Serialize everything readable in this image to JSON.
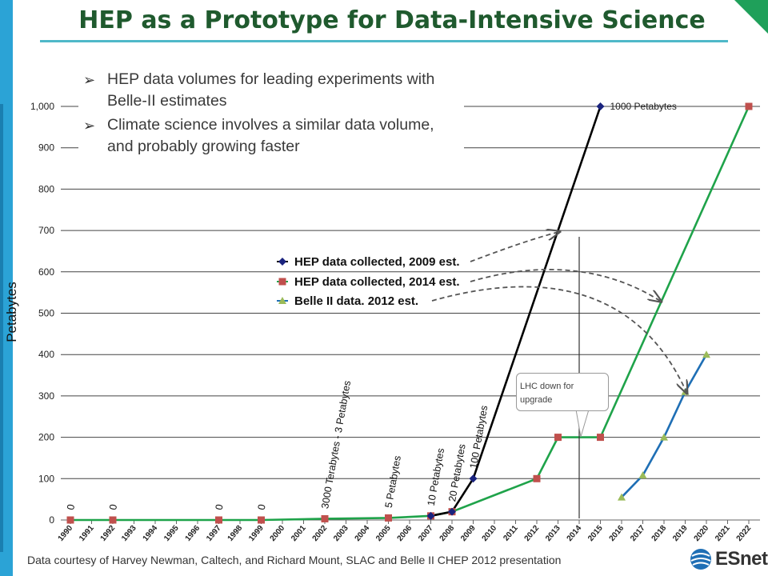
{
  "slide": {
    "title": "HEP as a Prototype for Data-Intensive Science",
    "bullets": [
      "HEP data volumes for leading experiments with Belle-II estimates",
      "Climate science involves a similar data volume, and probably growing faster"
    ],
    "footer": "Data courtesy of Harvey Newman, Caltech, and Richard Mount, SLAC and Belle II CHEP 2012 presentation",
    "logo": "ESnet",
    "colors": {
      "accent_blue": "#2ba3d6",
      "title_green": "#1f5a2e",
      "corner_green": "#1fa05a"
    }
  },
  "chart_data": {
    "type": "line",
    "ylabel": "Petabytes",
    "xlabel": "",
    "ylim": [
      0,
      1000
    ],
    "yticks": [
      "0",
      "100",
      "200",
      "300",
      "400",
      "500",
      "600",
      "700",
      "800",
      "900",
      "1,000"
    ],
    "ytick_values": [
      0,
      100,
      200,
      300,
      400,
      500,
      600,
      700,
      800,
      900,
      1000
    ],
    "x": [
      "1990",
      "1991",
      "1992",
      "1993",
      "1994",
      "1995",
      "1996",
      "1997",
      "1998",
      "1999",
      "2000",
      "2001",
      "2002",
      "2003",
      "2004",
      "2005",
      "2006",
      "2007",
      "2008",
      "2009",
      "2010",
      "2011",
      "2012",
      "2013",
      "2014",
      "2015",
      "2016",
      "2017",
      "2018",
      "2019",
      "2020",
      "2021",
      "2022"
    ],
    "grid": true,
    "series": [
      {
        "name": "HEP data collected, 2009 est.",
        "color": "#000000",
        "marker_color": "#1a237e",
        "marker": "diamond",
        "points": [
          [
            2007,
            10
          ],
          [
            2008,
            20
          ],
          [
            2009,
            100
          ],
          [
            2015,
            1000
          ]
        ]
      },
      {
        "name": "HEP data collected, 2014 est.",
        "color": "#1fa34a",
        "marker_color": "#c0504d",
        "marker": "square",
        "points": [
          [
            1990,
            0
          ],
          [
            1992,
            0
          ],
          [
            1997,
            0
          ],
          [
            1999,
            0
          ],
          [
            2002,
            3
          ],
          [
            2005,
            5
          ],
          [
            2007,
            10
          ],
          [
            2008,
            20
          ],
          [
            2012,
            100
          ],
          [
            2013,
            200
          ],
          [
            2015,
            200
          ],
          [
            2022,
            1000
          ]
        ]
      },
      {
        "name": "Belle II data. 2012 est.",
        "color": "#1f6fb5",
        "marker_color": "#9bbb59",
        "marker": "triangle",
        "points": [
          [
            2016,
            55
          ],
          [
            2017,
            108
          ],
          [
            2018,
            200
          ],
          [
            2019,
            310
          ],
          [
            2020,
            400
          ]
        ]
      }
    ],
    "data_labels": [
      {
        "year": 1990,
        "value": 0,
        "text": "0"
      },
      {
        "year": 1992,
        "value": 0,
        "text": "0"
      },
      {
        "year": 1997,
        "value": 0,
        "text": "0"
      },
      {
        "year": 1999,
        "value": 0,
        "text": "0"
      },
      {
        "year": 2002,
        "value": 3,
        "text": "3000 Terabytes - 3 Petabytes"
      },
      {
        "year": 2005,
        "value": 5,
        "text": "5 Petabytes"
      },
      {
        "year": 2007,
        "value": 10,
        "text": "10 Petabytes"
      },
      {
        "year": 2008,
        "value": 20,
        "text": "20 Petabytes"
      },
      {
        "year": 2009,
        "value": 100,
        "text": "100 Petabytes"
      }
    ],
    "annotations": {
      "peak_label": "1000 Petabytes",
      "callout": [
        "LHC down for",
        "upgrade"
      ]
    },
    "legend_placement": "center"
  }
}
